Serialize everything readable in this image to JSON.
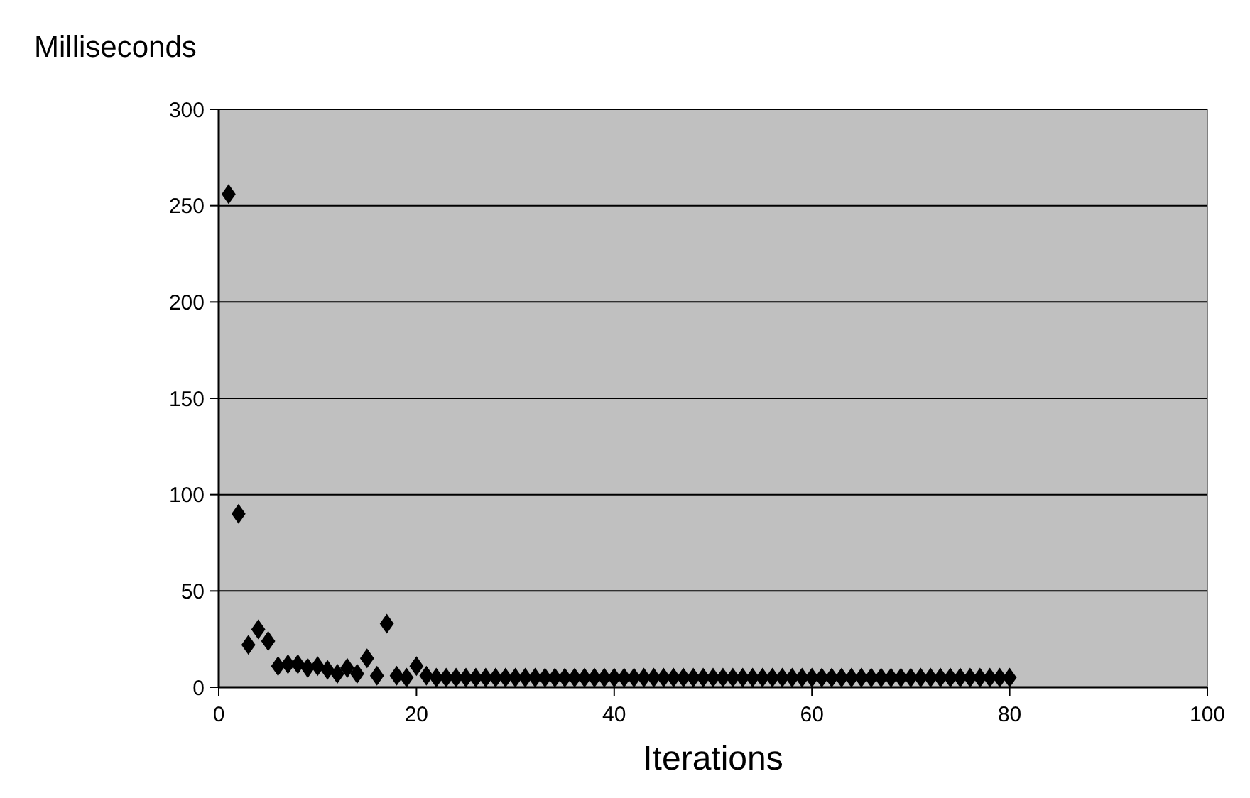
{
  "chart_data": {
    "type": "scatter",
    "ylabel": "Milliseconds",
    "xlabel": "Iterations",
    "x": [
      1,
      2,
      3,
      4,
      5,
      6,
      7,
      8,
      9,
      10,
      11,
      12,
      13,
      14,
      15,
      16,
      17,
      18,
      19,
      20,
      21,
      22,
      23,
      24,
      25,
      26,
      27,
      28,
      29,
      30,
      31,
      32,
      33,
      34,
      35,
      36,
      37,
      38,
      39,
      40,
      41,
      42,
      43,
      44,
      45,
      46,
      47,
      48,
      49,
      50,
      51,
      52,
      53,
      54,
      55,
      56,
      57,
      58,
      59,
      60,
      61,
      62,
      63,
      64,
      65,
      66,
      67,
      68,
      69,
      70,
      71,
      72,
      73,
      74,
      75,
      76,
      77,
      78,
      79,
      80
    ],
    "series": [
      {
        "color": "#000000",
        "values": [
          256,
          90,
          22,
          30,
          24,
          11,
          12,
          12,
          10,
          11,
          9,
          7,
          10,
          7,
          15,
          6,
          33,
          6,
          5,
          11,
          6,
          5,
          5,
          5,
          5,
          5,
          5,
          5,
          5,
          5,
          5,
          5,
          5,
          5,
          5,
          5,
          5,
          5,
          5,
          5,
          5,
          5,
          5,
          5,
          5,
          5,
          5,
          5,
          5,
          5,
          5,
          5,
          5,
          5,
          5,
          5,
          5,
          5,
          5,
          5,
          5,
          5,
          5,
          5,
          5,
          5,
          5,
          5,
          5,
          5,
          5,
          5,
          5,
          5,
          5,
          5,
          5,
          5,
          5,
          5
        ]
      }
    ],
    "xlim": [
      0,
      100
    ],
    "xticks": [
      0,
      20,
      40,
      60,
      80,
      100
    ],
    "ylim": [
      0,
      300
    ],
    "yticks": [
      0,
      50,
      100,
      150,
      200,
      250,
      300
    ],
    "grid": "y",
    "marker": "diamond"
  }
}
